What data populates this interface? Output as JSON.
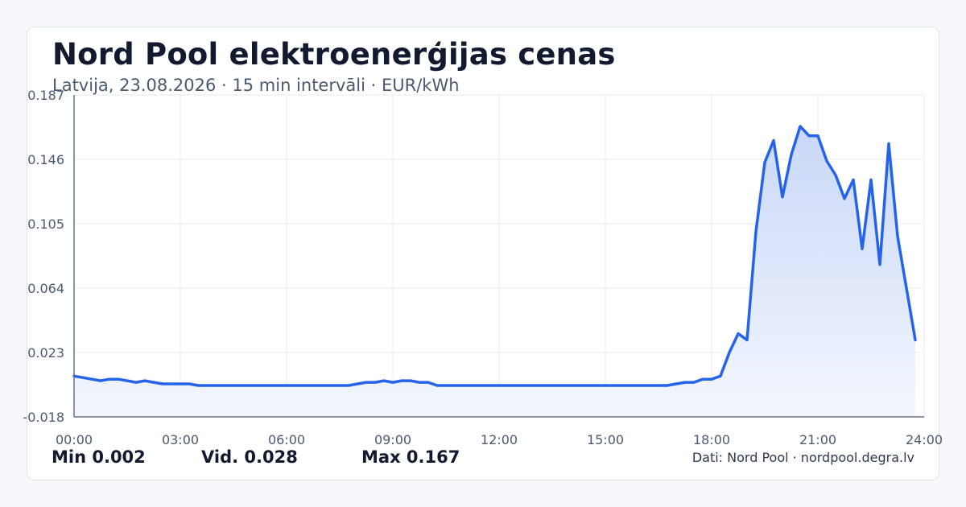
{
  "title": "Nord Pool elektroenerģijas cenas",
  "subtitle": "Latvija, 23.08.2026 · 15 min intervāli · EUR/kWh",
  "stats": {
    "min": "Min 0.002",
    "avg": "Vid. 0.028",
    "max": "Max 0.167"
  },
  "source": "Dati: Nord Pool · nordpool.degra.lv",
  "colors": {
    "line": "#2563eb",
    "fill_top": "#c9d8f7",
    "fill_bottom": "#f3f6fd",
    "grid": "#e6eaf0",
    "axis": "#64748b",
    "tick_text": "#4a5a70"
  },
  "chart_data": {
    "type": "area",
    "xlabel": "",
    "ylabel": "",
    "xlim": [
      0,
      24
    ],
    "ylim": [
      -0.018,
      0.187
    ],
    "grid": true,
    "legend": "none",
    "x_ticks": [
      {
        "value": 0,
        "label": "00:00"
      },
      {
        "value": 3,
        "label": "03:00"
      },
      {
        "value": 6,
        "label": "06:00"
      },
      {
        "value": 9,
        "label": "09:00"
      },
      {
        "value": 12,
        "label": "12:00"
      },
      {
        "value": 15,
        "label": "15:00"
      },
      {
        "value": 18,
        "label": "18:00"
      },
      {
        "value": 21,
        "label": "21:00"
      },
      {
        "value": 24,
        "label": "24:00"
      }
    ],
    "y_ticks": [
      {
        "value": -0.018,
        "label": "-0.018"
      },
      {
        "value": 0.023,
        "label": "0.023"
      },
      {
        "value": 0.064,
        "label": "0.064"
      },
      {
        "value": 0.105,
        "label": "0.105"
      },
      {
        "value": 0.146,
        "label": "0.146"
      },
      {
        "value": 0.187,
        "label": "0.187"
      }
    ],
    "series": [
      {
        "values": [
          [
            0.0,
            0.008
          ],
          [
            0.25,
            0.007
          ],
          [
            0.5,
            0.006
          ],
          [
            0.75,
            0.005
          ],
          [
            1.0,
            0.006
          ],
          [
            1.25,
            0.006
          ],
          [
            1.5,
            0.005
          ],
          [
            1.75,
            0.004
          ],
          [
            2.0,
            0.005
          ],
          [
            2.25,
            0.004
          ],
          [
            2.5,
            0.003
          ],
          [
            2.75,
            0.003
          ],
          [
            3.0,
            0.003
          ],
          [
            3.25,
            0.003
          ],
          [
            3.5,
            0.002
          ],
          [
            3.75,
            0.002
          ],
          [
            4.0,
            0.002
          ],
          [
            4.5,
            0.002
          ],
          [
            5.0,
            0.002
          ],
          [
            5.5,
            0.002
          ],
          [
            6.0,
            0.002
          ],
          [
            6.5,
            0.002
          ],
          [
            7.0,
            0.002
          ],
          [
            7.5,
            0.002
          ],
          [
            7.75,
            0.002
          ],
          [
            8.0,
            0.003
          ],
          [
            8.25,
            0.004
          ],
          [
            8.5,
            0.004
          ],
          [
            8.75,
            0.005
          ],
          [
            9.0,
            0.004
          ],
          [
            9.25,
            0.005
          ],
          [
            9.5,
            0.005
          ],
          [
            9.75,
            0.004
          ],
          [
            10.0,
            0.004
          ],
          [
            10.25,
            0.002
          ],
          [
            10.5,
            0.002
          ],
          [
            11.0,
            0.002
          ],
          [
            11.5,
            0.002
          ],
          [
            12.0,
            0.002
          ],
          [
            12.5,
            0.002
          ],
          [
            13.0,
            0.002
          ],
          [
            13.5,
            0.002
          ],
          [
            14.0,
            0.002
          ],
          [
            14.5,
            0.002
          ],
          [
            15.0,
            0.002
          ],
          [
            15.5,
            0.002
          ],
          [
            16.0,
            0.002
          ],
          [
            16.5,
            0.002
          ],
          [
            16.75,
            0.002
          ],
          [
            17.0,
            0.003
          ],
          [
            17.25,
            0.004
          ],
          [
            17.5,
            0.004
          ],
          [
            17.75,
            0.006
          ],
          [
            18.0,
            0.006
          ],
          [
            18.25,
            0.008
          ],
          [
            18.5,
            0.023
          ],
          [
            18.75,
            0.035
          ],
          [
            19.0,
            0.031
          ],
          [
            19.25,
            0.1
          ],
          [
            19.5,
            0.144
          ],
          [
            19.75,
            0.158
          ],
          [
            20.0,
            0.122
          ],
          [
            20.25,
            0.149
          ],
          [
            20.5,
            0.167
          ],
          [
            20.75,
            0.161
          ],
          [
            21.0,
            0.161
          ],
          [
            21.25,
            0.145
          ],
          [
            21.5,
            0.136
          ],
          [
            21.75,
            0.121
          ],
          [
            22.0,
            0.133
          ],
          [
            22.25,
            0.089
          ],
          [
            22.5,
            0.133
          ],
          [
            22.75,
            0.079
          ],
          [
            23.0,
            0.156
          ],
          [
            23.25,
            0.097
          ],
          [
            23.5,
            0.064
          ],
          [
            23.75,
            0.031
          ]
        ]
      }
    ]
  }
}
